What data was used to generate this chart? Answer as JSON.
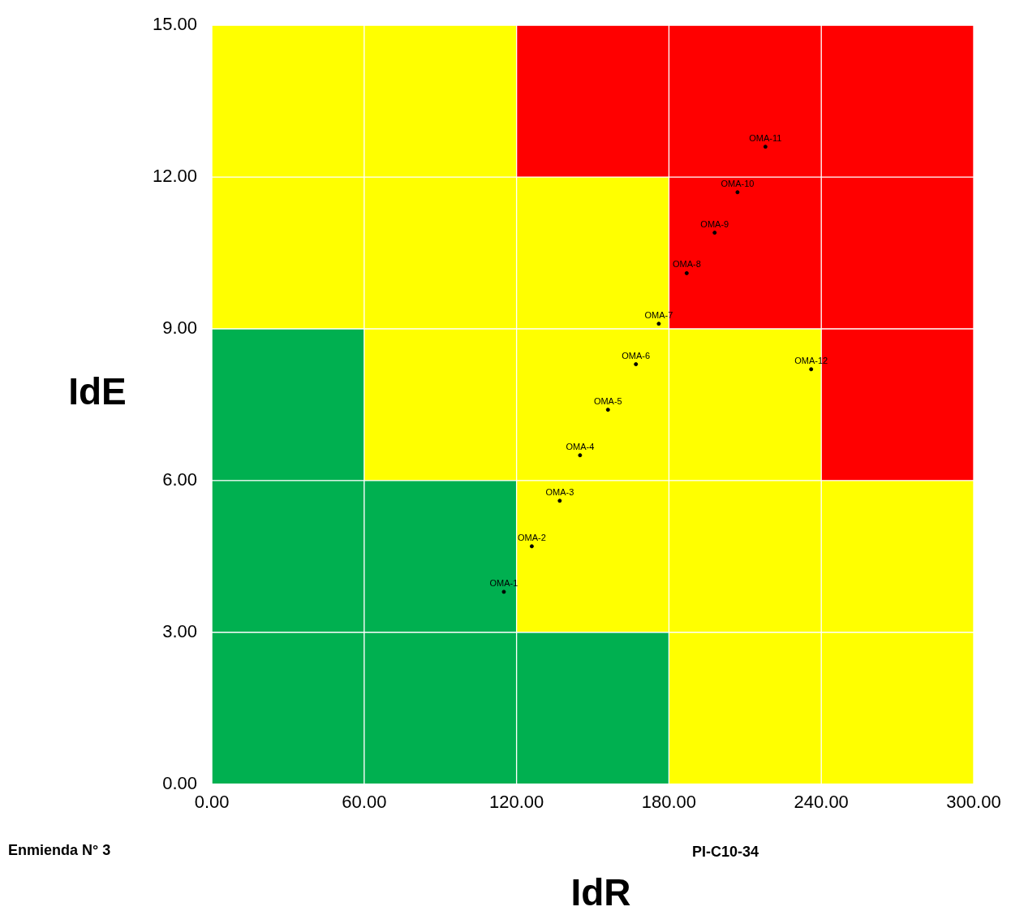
{
  "chart_data": {
    "type": "bar",
    "stacked": true,
    "xlabel": "IdR",
    "ylabel": "IdE",
    "x": [
      30,
      90,
      150,
      210,
      270
    ],
    "xlim": [
      0,
      300
    ],
    "xticks": [
      {
        "value": 0,
        "label": "0.00"
      },
      {
        "value": 60,
        "label": "60.00"
      },
      {
        "value": 120,
        "label": "120.00"
      },
      {
        "value": 180,
        "label": "180.00"
      },
      {
        "value": 240,
        "label": "240.00"
      },
      {
        "value": 300,
        "label": "300.00"
      }
    ],
    "ylim": [
      0,
      15
    ],
    "yticks": [
      {
        "value": 0,
        "label": "0.00"
      },
      {
        "value": 3,
        "label": "3.00"
      },
      {
        "value": 6,
        "label": "6.00"
      },
      {
        "value": 9,
        "label": "9.00"
      },
      {
        "value": 12,
        "label": "12.00"
      },
      {
        "value": 15,
        "label": "15.00"
      }
    ],
    "series": [
      {
        "values": [
          3,
          3,
          3,
          3,
          3
        ],
        "colors": [
          "#00b050",
          "#00b050",
          "#00b050",
          "#ffff00",
          "#ffff00"
        ]
      },
      {
        "values": [
          3,
          3,
          3,
          3,
          3
        ],
        "colors": [
          "#00b050",
          "#00b050",
          "#ffff00",
          "#ffff00",
          "#ffff00"
        ]
      },
      {
        "values": [
          3,
          3,
          3,
          3,
          3
        ],
        "colors": [
          "#00b050",
          "#ffff00",
          "#ffff00",
          "#ffff00",
          "#ff0000"
        ]
      },
      {
        "values": [
          3,
          3,
          3,
          3,
          3
        ],
        "colors": [
          "#ffff00",
          "#ffff00",
          "#ffff00",
          "#ff0000",
          "#ff0000"
        ]
      },
      {
        "values": [
          3,
          3,
          3,
          3,
          3
        ],
        "colors": [
          "#ffff00",
          "#ffff00",
          "#ff0000",
          "#ff0000",
          "#ff0000"
        ]
      },
      {
        "type": "scatter",
        "marker": "circle",
        "color": "#000000",
        "x": [
          115,
          126,
          137,
          145,
          156,
          167,
          176,
          187,
          198,
          207,
          218,
          236
        ],
        "values": [
          3.8,
          4.7,
          5.6,
          6.5,
          7.4,
          8.3,
          9.1,
          10.1,
          10.9,
          11.7,
          12.6,
          8.2
        ],
        "value_labels": [
          "OMA-1",
          "OMA-2",
          "OMA-3",
          "OMA-4",
          "OMA-5",
          "OMA-6",
          "OMA-7",
          "OMA-8",
          "OMA-9",
          "OMA-10",
          "OMA-11",
          "OMA-12"
        ]
      }
    ],
    "annotations": [
      "Enmienda N° 3",
      "PI-C10-34"
    ]
  }
}
